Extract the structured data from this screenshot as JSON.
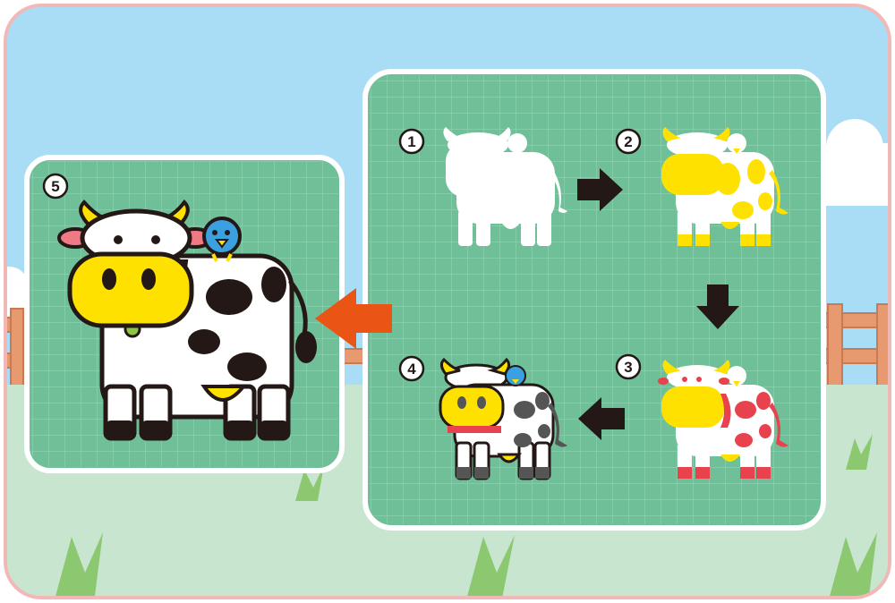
{
  "steps": [
    {
      "number": "1",
      "stage": "white-silhouette"
    },
    {
      "number": "2",
      "stage": "yellow-base-color"
    },
    {
      "number": "3",
      "stage": "red-accent-color"
    },
    {
      "number": "4",
      "stage": "gray-black-color"
    },
    {
      "number": "5",
      "stage": "final-full-color"
    }
  ],
  "colors": {
    "sky": "#a9dcf5",
    "grass": "#c8e6cf",
    "frame_border": "#f2b8b8",
    "panel_green": "#6fbf98",
    "panel_grid": "#88cfae",
    "panel_border": "#ffffff",
    "cow_black": "#231815",
    "cow_yellow": "#ffe100",
    "cow_red": "#e8424e",
    "cow_pink": "#ef7a86",
    "bird_blue": "#3aa0e0",
    "bell_green": "#8cc63f",
    "arrow_black": "#231815",
    "arrow_orange": "#ea5414",
    "fence": "#e79a6f"
  },
  "icons": {
    "arrow_right": "arrow-right-icon",
    "arrow_down": "arrow-down-icon",
    "arrow_left": "arrow-left-icon",
    "arrow_final": "arrow-left-orange-icon"
  }
}
